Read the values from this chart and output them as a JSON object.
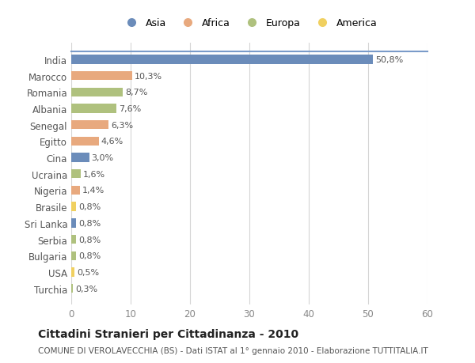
{
  "countries": [
    "India",
    "Marocco",
    "Romania",
    "Albania",
    "Senegal",
    "Egitto",
    "Cina",
    "Ucraina",
    "Nigeria",
    "Brasile",
    "Sri Lanka",
    "Serbia",
    "Bulgaria",
    "USA",
    "Turchia"
  ],
  "values": [
    50.8,
    10.3,
    8.7,
    7.6,
    6.3,
    4.6,
    3.0,
    1.6,
    1.4,
    0.8,
    0.8,
    0.8,
    0.8,
    0.5,
    0.3
  ],
  "labels": [
    "50,8%",
    "10,3%",
    "8,7%",
    "7,6%",
    "6,3%",
    "4,6%",
    "3,0%",
    "1,6%",
    "1,4%",
    "0,8%",
    "0,8%",
    "0,8%",
    "0,8%",
    "0,5%",
    "0,3%"
  ],
  "colors": [
    "#6b8cba",
    "#e8a97e",
    "#afc17e",
    "#afc17e",
    "#e8a97e",
    "#e8a97e",
    "#6b8cba",
    "#afc17e",
    "#e8a97e",
    "#f0d060",
    "#6b8cba",
    "#afc17e",
    "#afc17e",
    "#f0d060",
    "#afc17e"
  ],
  "legend_labels": [
    "Asia",
    "Africa",
    "Europa",
    "America"
  ],
  "legend_colors": [
    "#6b8cba",
    "#e8a97e",
    "#afc17e",
    "#f0d060"
  ],
  "title": "Cittadini Stranieri per Cittadinanza - 2010",
  "subtitle": "COMUNE DI VEROLAVECCHIA (BS) - Dati ISTAT al 1° gennaio 2010 - Elaborazione TUTTITALIA.IT",
  "xlim": [
    0,
    60
  ],
  "xticks": [
    0,
    10,
    20,
    30,
    40,
    50,
    60
  ],
  "bg_color": "#ffffff",
  "grid_color": "#d5d5d5",
  "label_color": "#555555",
  "tick_color": "#888888",
  "title_color": "#222222",
  "subtitle_color": "#555555"
}
